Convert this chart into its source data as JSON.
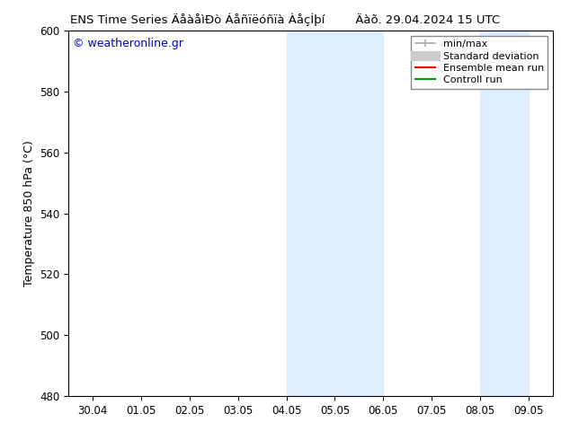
{
  "title_left": "ENS Time Series ÄåàåìÐò Áåñïëóñïà ÀåçÍþí",
  "title_right": "Äàõ. 29.04.2024 15 UTC",
  "ylabel": "Temperature 850 hPa (°C)",
  "watermark": "© weatheronline.gr",
  "watermark_color": "#0000cc",
  "xticklabels": [
    "30.04",
    "01.05",
    "02.05",
    "03.05",
    "04.05",
    "05.05",
    "06.05",
    "07.05",
    "08.05",
    "09.05"
  ],
  "xtick_positions": [
    0,
    1,
    2,
    3,
    4,
    5,
    6,
    7,
    8,
    9
  ],
  "ylim": [
    480,
    600
  ],
  "yticks": [
    480,
    500,
    520,
    540,
    560,
    580,
    600
  ],
  "background_color": "#ffffff",
  "plot_bg_color": "#ffffff",
  "shade_regions": [
    {
      "x_start": 4.0,
      "x_end": 5.0,
      "color": "#ddeeff"
    },
    {
      "x_start": 5.0,
      "x_end": 6.0,
      "color": "#ddeeff"
    },
    {
      "x_start": 8.0,
      "x_end": 8.5,
      "color": "#ddeeff"
    },
    {
      "x_start": 8.5,
      "x_end": 9.0,
      "color": "#ddeeff"
    }
  ],
  "legend_entries": [
    {
      "label": "min/max",
      "color": "#aaaaaa",
      "lw": 1.2,
      "style": "minmax"
    },
    {
      "label": "Standard deviation",
      "color": "#cccccc",
      "lw": 8,
      "style": "band"
    },
    {
      "label": "Ensemble mean run",
      "color": "#ff0000",
      "lw": 1.5,
      "style": "solid"
    },
    {
      "label": "Controll run",
      "color": "#009900",
      "lw": 1.5,
      "style": "solid"
    }
  ],
  "figsize": [
    6.34,
    4.9
  ],
  "dpi": 100,
  "title_fontsize": 9.5,
  "axis_label_fontsize": 9,
  "tick_fontsize": 8.5,
  "legend_fontsize": 8,
  "watermark_fontsize": 9,
  "spine_color": "#000000",
  "xlim_left": -0.5,
  "xlim_right": 9.5
}
